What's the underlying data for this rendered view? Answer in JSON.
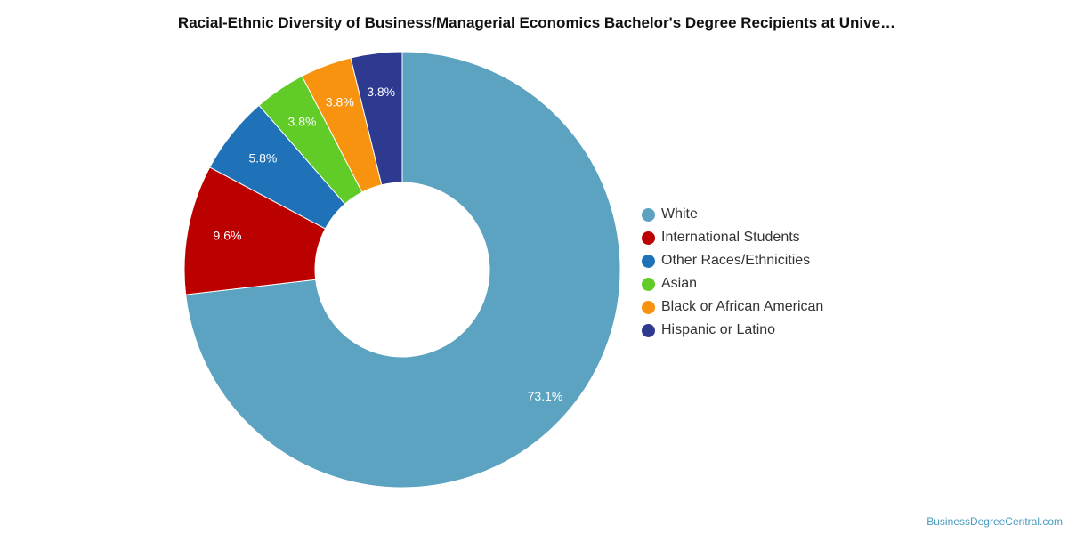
{
  "chart_data": {
    "type": "pie",
    "title": "Racial-Ethnic Diversity of Business/Managerial Economics Bachelor's Degree Recipients at Unive…",
    "donut": true,
    "slices": [
      {
        "label": "White",
        "value": 73.1,
        "value_label": "73.1%",
        "color": "#5ba3c0"
      },
      {
        "label": "International Students",
        "value": 9.6,
        "value_label": "9.6%",
        "color": "#bb0000"
      },
      {
        "label": "Other Races/Ethnicities",
        "value": 5.8,
        "value_label": "5.8%",
        "color": "#1f72b8"
      },
      {
        "label": "Asian",
        "value": 3.8,
        "value_label": "3.8%",
        "color": "#61cc27"
      },
      {
        "label": "Black or African American",
        "value": 3.8,
        "value_label": "3.8%",
        "color": "#f7930e"
      },
      {
        "label": "Hispanic or Latino",
        "value": 3.8,
        "value_label": "3.8%",
        "color": "#2e3a8f"
      }
    ],
    "legend_position": "right"
  },
  "watermark": "BusinessDegreeCentral.com"
}
